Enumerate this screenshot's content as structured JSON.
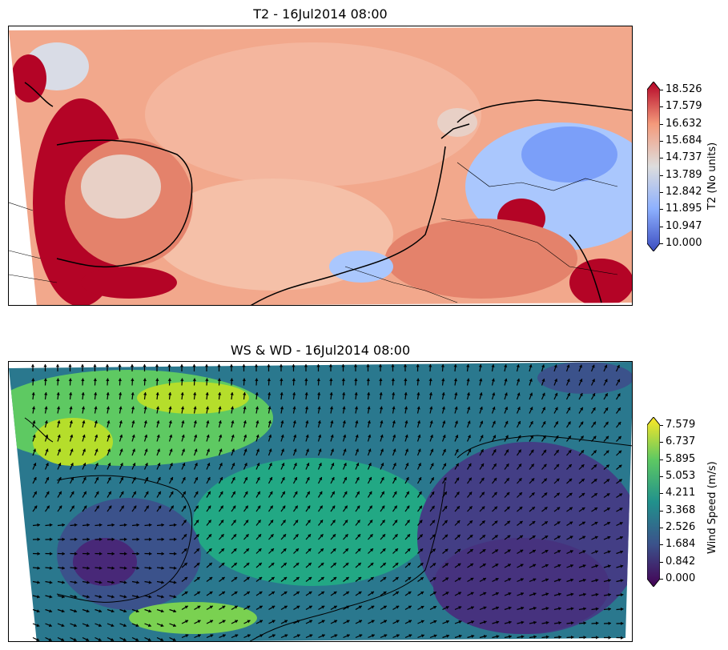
{
  "chart_data": [
    {
      "type": "heatmap",
      "title": "T2 - 16Jul2014 08:00",
      "colorbar": {
        "label": "T2 (No units)",
        "min": 10.0,
        "max": 18.526,
        "ticks": [
          "10.000",
          "10.947",
          "11.895",
          "12.842",
          "13.789",
          "14.737",
          "15.684",
          "16.632",
          "17.579",
          "18.526"
        ],
        "colormap": "coolwarm",
        "extend": "both"
      },
      "colors": {
        "cold": "#3b4cc0",
        "mid": "#dddddd",
        "warm": "#b40426"
      }
    },
    {
      "type": "heatmap",
      "title": "WS & WD - 16Jul2014 08:00",
      "overlay": "wind-vector-arrows",
      "colorbar": {
        "label": "Wind Speed (m/s)",
        "min": 0.0,
        "max": 7.579,
        "ticks": [
          "0.000",
          "0.842",
          "1.684",
          "2.526",
          "3.368",
          "4.211",
          "5.053",
          "5.895",
          "6.737",
          "7.579"
        ],
        "colormap": "viridis",
        "extend": "both"
      },
      "colors": {
        "low": "#440154",
        "mid": "#21918c",
        "high": "#fde725"
      }
    }
  ]
}
